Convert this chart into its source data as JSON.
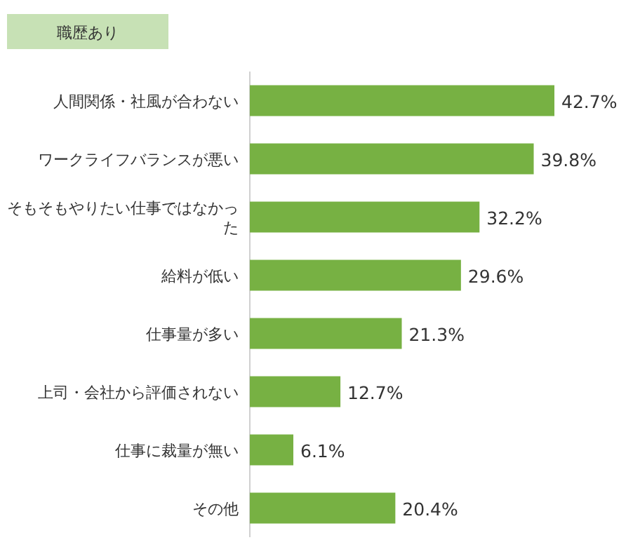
{
  "chart_data": {
    "type": "bar",
    "orientation": "horizontal",
    "title": "職歴あり",
    "categories": [
      "人間関係・社風が合わない",
      "ワークライフバランスが悪い",
      "そもそもやりたい仕事ではなかった",
      "給料が低い",
      "仕事量が多い",
      "上司・会社から評価されない",
      "仕事に裁量が無い",
      "その他"
    ],
    "values": [
      42.7,
      39.8,
      32.2,
      29.6,
      21.3,
      12.7,
      6.1,
      20.4
    ],
    "value_labels": [
      "42.7%",
      "39.8%",
      "32.2%",
      "29.6%",
      "21.3%",
      "12.7%",
      "6.1%",
      "20.4%"
    ],
    "color": "#77b143"
  }
}
